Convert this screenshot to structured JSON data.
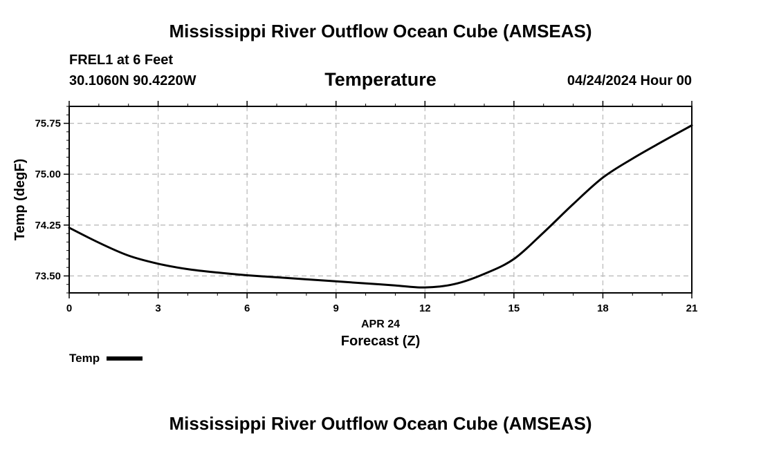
{
  "header": {
    "title": "Mississippi River Outflow Ocean Cube (AMSEAS)",
    "station": "FREL1 at 6 Feet",
    "coordinates": "30.1060N  90.4220W",
    "variable": "Temperature",
    "datetime": "04/24/2024 Hour 00"
  },
  "footer": {
    "title": "Mississippi River Outflow Ocean Cube (AMSEAS)"
  },
  "legend": {
    "label": "Temp",
    "color": "#000000"
  },
  "chart_data": {
    "type": "line",
    "title": "Temperature",
    "xlabel": "Forecast (Z)",
    "xsublabel": "APR 24",
    "ylabel": "Temp (degF)",
    "xlim": [
      0,
      21
    ],
    "ylim": [
      73.25,
      76.0
    ],
    "xticks": [
      0,
      3,
      6,
      9,
      12,
      15,
      18,
      21
    ],
    "yticks": [
      73.5,
      74.25,
      75.0,
      75.75
    ],
    "ytick_labels": [
      "73.50",
      "74.25",
      "75.00",
      "75.75"
    ],
    "grid": true,
    "series": [
      {
        "name": "Temp",
        "color": "#000000",
        "x": [
          0,
          1,
          2,
          3,
          4,
          5,
          6,
          7,
          8,
          9,
          10,
          11,
          12,
          13,
          14,
          15,
          16,
          17,
          18,
          19,
          20,
          21
        ],
        "y": [
          74.21,
          73.99,
          73.8,
          73.68,
          73.6,
          73.55,
          73.51,
          73.48,
          73.45,
          73.42,
          73.39,
          73.36,
          73.33,
          73.38,
          73.53,
          73.75,
          74.14,
          74.56,
          74.95,
          75.23,
          75.48,
          75.72
        ]
      }
    ]
  }
}
